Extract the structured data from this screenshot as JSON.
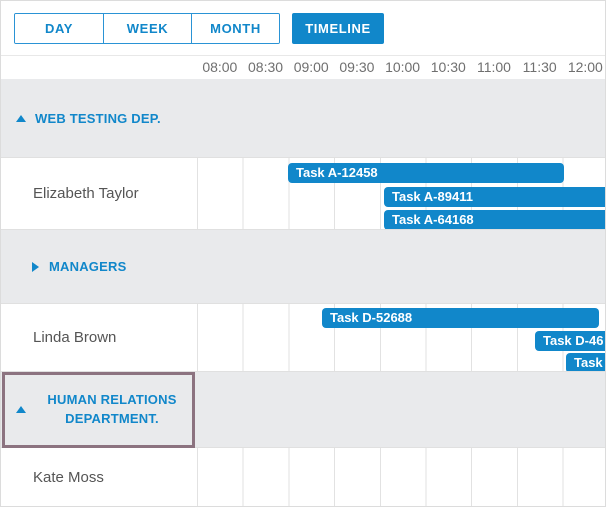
{
  "toolbar": {
    "views": [
      {
        "label": "DAY",
        "active": false
      },
      {
        "label": "WEEK",
        "active": false
      },
      {
        "label": "MONTH",
        "active": false
      },
      {
        "label": "TIMELINE",
        "active": true
      }
    ]
  },
  "timeline_header": {
    "times": [
      "08:00",
      "08:30",
      "09:00",
      "09:30",
      "10:00",
      "10:30",
      "11:00",
      "11:30",
      "12:00"
    ]
  },
  "rows": [
    {
      "type": "group",
      "label": "WEB TESTING DEP.",
      "state": "expanded"
    },
    {
      "type": "person",
      "name": "Elizabeth Taylor",
      "tasks": [
        {
          "label": "Task A-12458"
        },
        {
          "label": "Task A-89411"
        },
        {
          "label": "Task A-64168"
        }
      ]
    },
    {
      "type": "group",
      "label": "MANAGERS",
      "state": "collapsed"
    },
    {
      "type": "person",
      "name": "Linda Brown",
      "tasks": [
        {
          "label": "Task D-52688"
        },
        {
          "label": "Task D-46"
        },
        {
          "label": "Task"
        }
      ]
    },
    {
      "type": "group",
      "label": "HUMAN RELATIONS DEPARTMENT.",
      "state": "expanded",
      "highlighted": true
    },
    {
      "type": "person",
      "name": "Kate Moss",
      "tasks": []
    }
  ],
  "colors": {
    "accent": "#1187ca",
    "task_bar": "#1187ca",
    "group_row_bg": "#e9eaec",
    "highlight_border": "#8c7380",
    "grid_line": "#e2e2e2",
    "time_label": "#6f6f6f",
    "resource_label": "#555555"
  }
}
